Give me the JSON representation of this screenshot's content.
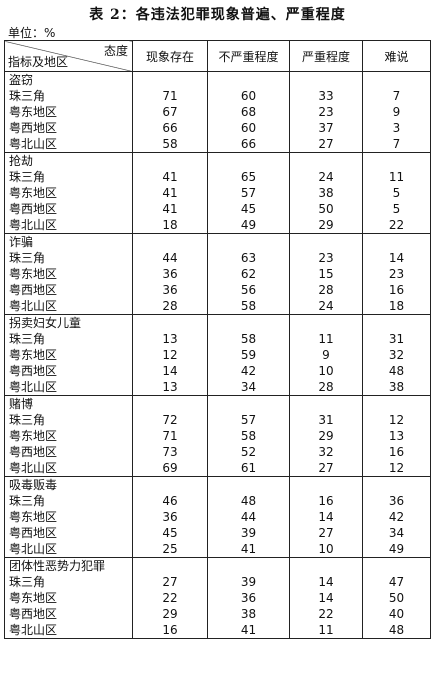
{
  "title": "表 2：各违法犯罪现象普遍、严重程度",
  "unit_label": "单位：%",
  "header": {
    "diag_top": "态度",
    "diag_bottom": "指标及地区",
    "columns": [
      "现象存在",
      "不严重程度",
      "严重程度",
      "难说"
    ]
  },
  "categories": [
    {
      "name": "盗窃",
      "rows": [
        {
          "region": "珠三角",
          "values": [
            "71",
            "60",
            "33",
            "7"
          ]
        },
        {
          "region": "粤东地区",
          "values": [
            "67",
            "68",
            "23",
            "9"
          ]
        },
        {
          "region": "粤西地区",
          "values": [
            "66",
            "60",
            "37",
            "3"
          ]
        },
        {
          "region": "粤北山区",
          "values": [
            "58",
            "66",
            "27",
            "7"
          ]
        }
      ]
    },
    {
      "name": "抢劫",
      "rows": [
        {
          "region": "珠三角",
          "values": [
            "41",
            "65",
            "24",
            "11"
          ]
        },
        {
          "region": "粤东地区",
          "values": [
            "41",
            "57",
            "38",
            "5"
          ]
        },
        {
          "region": "粤西地区",
          "values": [
            "41",
            "45",
            "50",
            "5"
          ]
        },
        {
          "region": "粤北山区",
          "values": [
            "18",
            "49",
            "29",
            "22"
          ]
        }
      ]
    },
    {
      "name": "诈骗",
      "rows": [
        {
          "region": "珠三角",
          "values": [
            "44",
            "63",
            "23",
            "14"
          ]
        },
        {
          "region": "粤东地区",
          "values": [
            "36",
            "62",
            "15",
            "23"
          ]
        },
        {
          "region": "粤西地区",
          "values": [
            "36",
            "56",
            "28",
            "16"
          ]
        },
        {
          "region": "粤北山区",
          "values": [
            "28",
            "58",
            "24",
            "18"
          ]
        }
      ]
    },
    {
      "name": "拐卖妇女儿童",
      "rows": [
        {
          "region": "珠三角",
          "values": [
            "13",
            "58",
            "11",
            "31"
          ]
        },
        {
          "region": "粤东地区",
          "values": [
            "12",
            "59",
            "9",
            "32"
          ]
        },
        {
          "region": "粤西地区",
          "values": [
            "14",
            "42",
            "10",
            "48"
          ]
        },
        {
          "region": "粤北山区",
          "values": [
            "13",
            "34",
            "28",
            "38"
          ]
        }
      ]
    },
    {
      "name": "赌博",
      "rows": [
        {
          "region": "珠三角",
          "values": [
            "72",
            "57",
            "31",
            "12"
          ]
        },
        {
          "region": "粤东地区",
          "values": [
            "71",
            "58",
            "29",
            "13"
          ]
        },
        {
          "region": "粤西地区",
          "values": [
            "73",
            "52",
            "32",
            "16"
          ]
        },
        {
          "region": "粤北山区",
          "values": [
            "69",
            "61",
            "27",
            "12"
          ]
        }
      ]
    },
    {
      "name": "吸毒贩毒",
      "rows": [
        {
          "region": "珠三角",
          "values": [
            "46",
            "48",
            "16",
            "36"
          ]
        },
        {
          "region": "粤东地区",
          "values": [
            "36",
            "44",
            "14",
            "42"
          ]
        },
        {
          "region": "粤西地区",
          "values": [
            "45",
            "39",
            "27",
            "34"
          ]
        },
        {
          "region": "粤北山区",
          "values": [
            "25",
            "41",
            "10",
            "49"
          ]
        }
      ]
    },
    {
      "name": "团体性恶势力犯罪",
      "rows": [
        {
          "region": "珠三角",
          "values": [
            "27",
            "39",
            "14",
            "47"
          ]
        },
        {
          "region": "粤东地区",
          "values": [
            "22",
            "36",
            "14",
            "50"
          ]
        },
        {
          "region": "粤西地区",
          "values": [
            "29",
            "38",
            "22",
            "40"
          ]
        },
        {
          "region": "粤北山区",
          "values": [
            "16",
            "41",
            "11",
            "48"
          ]
        }
      ]
    }
  ]
}
